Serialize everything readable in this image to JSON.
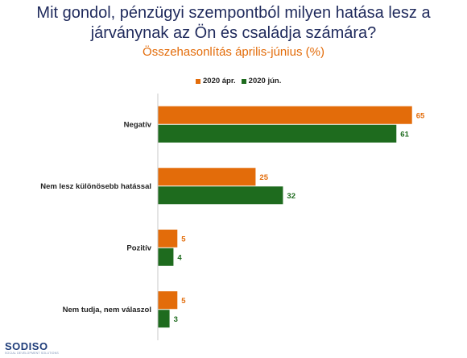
{
  "header": {
    "title_line1": "Mit gondol, pénzügyi szempontból milyen hatása lesz a",
    "title_line2": "járványnak az Ön és családja számára?",
    "subtitle": "Összehasonlítás április-június (%)"
  },
  "logo": {
    "text": "SODISO",
    "tagline": "SOCIAL DEVELOPMENT SOLUTIONS"
  },
  "chart_data": {
    "type": "bar",
    "orientation": "horizontal",
    "categories": [
      "Negatív",
      "Nem lesz különösebb hatással",
      "Pozitív",
      "Nem tudja, nem válaszol"
    ],
    "series": [
      {
        "name": "2020 ápr.",
        "values": [
          65,
          25,
          5,
          5
        ],
        "color": "#e36c0a"
      },
      {
        "name": "2020 jún.",
        "values": [
          61,
          32,
          4,
          3
        ],
        "color": "#1e6b1e"
      }
    ],
    "xlim": [
      0,
      70
    ],
    "grid": false,
    "legend_position": "top",
    "data_labels": true
  }
}
